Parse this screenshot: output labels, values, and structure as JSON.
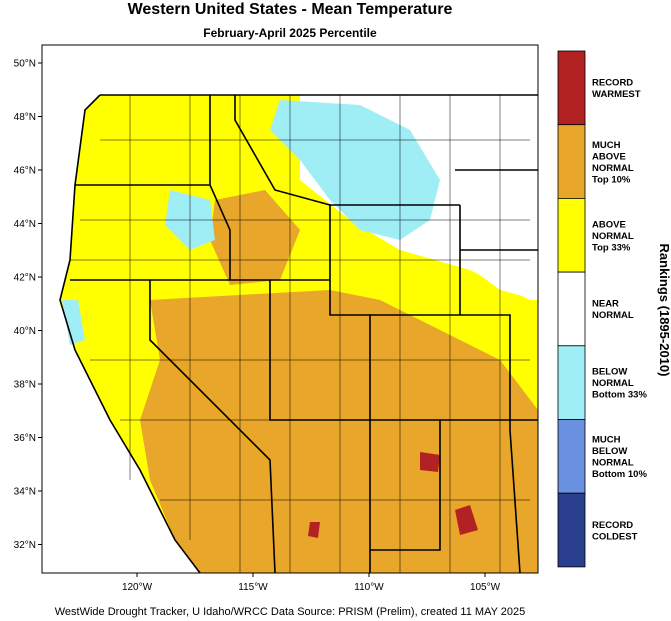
{
  "title": "Western United States - Mean Temperature",
  "subtitle": "February-April 2025 Percentile",
  "map": {
    "lat_labels": [
      "50°N",
      "48°N",
      "46°N",
      "44°N",
      "42°N",
      "40°N",
      "38°N",
      "36°N",
      "34°N",
      "32°N"
    ],
    "lon_labels": [
      "120°W",
      "115°W",
      "110°W",
      "105°W"
    ]
  },
  "legend": {
    "title": "Rankings (1895-2010)",
    "items": [
      {
        "lines": [
          "RECORD",
          "WARMEST"
        ],
        "color": "#b22222"
      },
      {
        "lines": [
          "MUCH",
          "ABOVE",
          "NORMAL",
          "Top 10%"
        ],
        "color": "#e8a62a"
      },
      {
        "lines": [
          "ABOVE",
          "NORMAL",
          "Top 33%"
        ],
        "color": "#ffff00"
      },
      {
        "lines": [
          "NEAR",
          "NORMAL"
        ],
        "color": "#ffffff"
      },
      {
        "lines": [
          "BELOW",
          "NORMAL",
          "Bottom 33%"
        ],
        "color": "#a0eef5"
      },
      {
        "lines": [
          "MUCH",
          "BELOW",
          "NORMAL",
          "Bottom 10%"
        ],
        "color": "#6a90e0"
      },
      {
        "lines": [
          "RECORD",
          "COLDEST"
        ],
        "color": "#2b3f8f"
      }
    ]
  },
  "footer": "WestWide Drought Tracker, U Idaho/WRCC Data Source: PRISM (Prelim), created 11 MAY 2025"
}
